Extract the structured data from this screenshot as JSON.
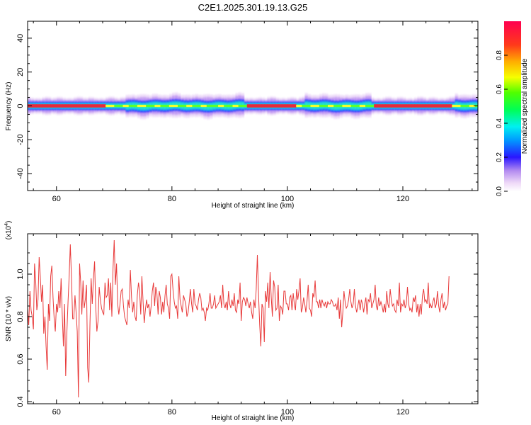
{
  "title": "C2E1.2025.301.19.13.G25",
  "colors": {
    "snr_line": "#e83a3a",
    "band_core": "#e8283c",
    "background": "#ffffff"
  },
  "chart_data": [
    {
      "type": "heatmap",
      "xlabel": "Height of straight line (km)",
      "ylabel": "Frequency (Hz)",
      "xlim": [
        55,
        133
      ],
      "ylim": [
        -50,
        50
      ],
      "x_ticks": [
        60,
        80,
        100,
        120
      ],
      "y_ticks": [
        40,
        20,
        0,
        -20,
        -40
      ],
      "y_tick_labels": [
        "40",
        "20",
        "0",
        "-20",
        "-40"
      ],
      "colorbar": {
        "label": "Normalized spectral amplitude",
        "range": [
          0,
          1
        ],
        "ticks": [
          0.0,
          0.2,
          0.4,
          0.6,
          0.8
        ],
        "tick_labels": [
          "0.0",
          "0.2",
          "0.4",
          "0.6",
          "0.8"
        ],
        "colormap": "hsv-reversed"
      },
      "band": {
        "center_frequency_hz": 0,
        "strong_intervals_km": [
          [
            55,
            68
          ],
          [
            93,
            101
          ],
          [
            115,
            128
          ]
        ],
        "wide_intervals_km": [
          [
            72,
            92
          ],
          [
            103,
            114
          ],
          [
            129,
            133
          ]
        ],
        "half_width_hz": [
          1,
          4
        ]
      },
      "grid": false,
      "legend": "colorbar-right"
    },
    {
      "type": "line",
      "xlabel": "Height of straight line (km)",
      "ylabel": "SNR (10 * v/v)",
      "y_scale_label": "(x10",
      "y_scale_exponent": "4",
      "xlim": [
        55,
        133
      ],
      "ylim": [
        0.39,
        1.19
      ],
      "x_ticks": [
        60,
        80,
        100,
        120
      ],
      "y_ticks": [
        1.0,
        0.8,
        0.6,
        0.4
      ],
      "y_tick_labels": [
        "1.0",
        "0.8",
        "0.6",
        "0.4"
      ],
      "series": [
        {
          "x_start": 55,
          "x_step": 0.2,
          "values": [
            0.84,
            0.76,
            0.92,
            0.83,
            0.8,
            0.74,
            1.05,
            0.97,
            0.83,
            0.88,
            1.08,
            0.99,
            0.87,
            0.95,
            0.72,
            0.8,
            0.66,
            0.55,
            0.86,
            0.78,
            0.99,
            1.04,
            0.89,
            0.79,
            0.73,
            0.86,
            0.82,
            0.92,
            0.84,
            0.98,
            0.81,
            0.66,
            0.86,
            0.52,
            0.72,
            0.87,
            0.99,
            1.14,
            0.98,
            0.79,
            0.79,
            0.9,
            0.82,
            0.73,
            0.42,
            1.05,
            0.96,
            0.81,
            0.97,
            0.84,
            0.88,
            0.95,
            0.56,
            0.49,
            0.77,
            0.98,
            0.86,
            0.98,
            1.06,
            0.85,
            0.73,
            0.78,
            0.94,
            0.88,
            0.84,
            0.82,
            0.81,
            0.96,
            0.89,
            0.9,
            0.98,
            0.83,
            0.96,
            0.8,
            1.03,
            1.16,
            0.95,
            1.05,
            0.86,
            0.81,
            0.86,
            0.92,
            0.93,
            0.85,
            0.8,
            0.78,
            0.76,
            0.88,
            0.84,
            1.02,
            0.89,
            0.82,
            0.87,
            0.8,
            0.78,
            0.9,
            0.96,
            0.92,
            0.81,
            0.99,
            0.87,
            0.77,
            0.83,
            0.88,
            0.84,
            0.86,
            0.8,
            0.85,
            0.92,
            0.96,
            0.85,
            0.94,
            0.91,
            0.81,
            0.92,
            0.89,
            0.81,
            0.87,
            0.82,
            0.9,
            0.95,
            0.86,
            0.84,
            0.79,
            0.99,
            1.0,
            0.92,
            0.87,
            0.84,
            0.85,
            0.79,
            0.99,
            0.88,
            0.85,
            0.82,
            0.9,
            0.88,
            0.86,
            0.8,
            0.82,
            0.87,
            0.93,
            0.86,
            0.82,
            0.93,
            0.86,
            0.85,
            0.83,
            0.88,
            0.91,
            0.89,
            0.83,
            0.84,
            0.82,
            0.78,
            0.84,
            0.83,
            0.86,
            0.91,
            0.84,
            0.84,
            0.86,
            0.9,
            0.84,
            0.85,
            0.86,
            0.87,
            0.9,
            0.84,
            0.95,
            0.86,
            0.84,
            0.87,
            0.83,
            0.92,
            0.86,
            0.84,
            0.88,
            0.85,
            0.91,
            0.83,
            0.82,
            0.88,
            0.86,
            0.96,
            0.78,
            0.87,
            0.89,
            0.88,
            0.85,
            0.89,
            0.86,
            0.84,
            0.87,
            0.82,
            0.79,
            0.88,
            0.84,
            0.93,
            1.09,
            0.9,
            0.76,
            0.66,
            0.86,
            0.84,
            0.68,
            0.92,
            0.87,
            0.96,
            0.84,
            1.01,
            0.89,
            0.8,
            0.97,
            0.94,
            0.83,
            0.84,
            0.95,
            0.78,
            0.85,
            0.84,
            0.81,
            0.92,
            0.92,
            0.86,
            0.86,
            0.83,
            0.89,
            0.9,
            0.83,
            0.91,
            0.86,
            0.83,
            0.93,
            0.88,
            0.92,
            0.98,
            0.82,
            0.84,
            0.89,
            0.86,
            0.82,
            0.87,
            0.95,
            0.84,
            0.83,
            0.8,
            0.91,
            0.89,
            0.97,
            0.87,
            0.87,
            0.84,
            0.88,
            0.84,
            0.88,
            0.86,
            0.85,
            0.87,
            0.84,
            0.87,
            0.86,
            0.86,
            0.88,
            0.87,
            0.85,
            0.85,
            0.86,
            0.83,
            0.89,
            0.79,
            0.88,
            0.75,
            0.82,
            0.92,
            0.87,
            0.84,
            0.85,
            0.88,
            0.93,
            0.87,
            0.84,
            0.86,
            0.93,
            0.85,
            0.82,
            0.85,
            0.88,
            0.83,
            0.88,
            0.86,
            0.82,
            0.86,
            0.89,
            0.81,
            0.88,
            0.87,
            0.91,
            0.84,
            0.86,
            0.88,
            0.95,
            0.85,
            0.83,
            0.89,
            0.85,
            0.87,
            0.85,
            0.82,
            0.86,
            0.82,
            0.92,
            0.86,
            0.84,
            0.93,
            0.88,
            0.85,
            0.86,
            0.83,
            0.82,
            0.88,
            0.85,
            0.96,
            0.82,
            0.86,
            0.85,
            0.88,
            0.84,
            0.86,
            0.94,
            0.86,
            0.83,
            0.84,
            0.82,
            0.89,
            0.87,
            0.9,
            0.82,
            0.86,
            0.8,
            0.86,
            0.81,
            0.9,
            0.93,
            0.87,
            0.88,
            0.86,
            0.96,
            0.84,
            0.86,
            0.84,
            0.87,
            0.89,
            0.84,
            0.86,
            0.92,
            0.85,
            0.82,
            0.88,
            0.91,
            0.84,
            0.87,
            0.83,
            0.85,
            0.86,
            0.99
          ]
        }
      ],
      "grid": false,
      "legend": "none"
    }
  ]
}
